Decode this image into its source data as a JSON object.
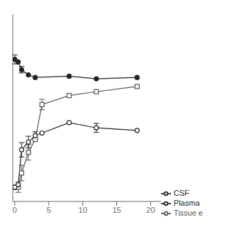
{
  "chart_data": {
    "type": "line",
    "series": [
      {
        "name": "Plasma",
        "color": "#222222",
        "marker": "filled_circle",
        "x": [
          0,
          0.5,
          1,
          2,
          3,
          8,
          12,
          18
        ],
        "values": [
          10.0,
          9.8,
          9.2,
          8.8,
          8.6,
          8.7,
          8.5,
          8.6
        ],
        "yerr": [
          0.35,
          0.0,
          0.25,
          0.0,
          0.0,
          0.0,
          0.0,
          0.0
        ]
      },
      {
        "name": "Tissue e",
        "color": "#555555",
        "marker": "open_square",
        "x": [
          0,
          0.5,
          1,
          2,
          3,
          4,
          8,
          12,
          18
        ],
        "values": [
          0.1,
          0.1,
          1.2,
          2.8,
          3.8,
          6.5,
          7.2,
          7.5,
          7.9
        ],
        "yerr": [
          0.0,
          0.4,
          0.6,
          0.6,
          0.0,
          0.4,
          0.0,
          0.0,
          0.0
        ]
      },
      {
        "name": "CSF",
        "color": "#222222",
        "marker": "open_circle",
        "x": [
          0,
          0.5,
          1,
          2,
          3,
          4,
          8,
          12,
          18
        ],
        "values": [
          0.1,
          0.3,
          3.0,
          3.6,
          4.1,
          4.3,
          5.1,
          4.7,
          4.5
        ],
        "yerr": [
          0.0,
          0.0,
          0.55,
          0.45,
          0.3,
          0.0,
          0.0,
          0.35,
          0.0
        ]
      }
    ],
    "xlim": [
      -0.3,
      21.5
    ],
    "xticks": [
      0,
      5,
      10,
      15,
      20
    ],
    "ylim": [
      -1.0,
      13.5
    ],
    "grid": false,
    "legend": "lower right",
    "tick_labels": "x"
  }
}
